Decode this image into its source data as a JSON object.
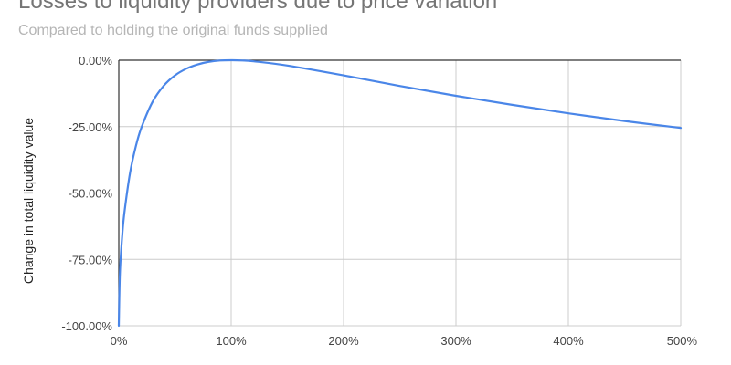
{
  "chart_data": {
    "type": "line",
    "title": "Losses to liquidity providers due to price variation",
    "subtitle": "Compared to holding the original funds supplied",
    "ylabel": "Change in total liquidity value",
    "xlabel": "",
    "xlim": [
      0,
      500
    ],
    "ylim": [
      -100,
      0
    ],
    "x_ticks": [
      0,
      100,
      200,
      300,
      400,
      500
    ],
    "x_tick_labels": [
      "0%",
      "100%",
      "200%",
      "300%",
      "400%",
      "500%"
    ],
    "y_ticks": [
      0,
      -25,
      -50,
      -75,
      -100
    ],
    "y_tick_labels": [
      "0.00%",
      "-25.00%",
      "-50.00%",
      "-75.00%",
      "-100.00%"
    ],
    "grid": true,
    "legend": "none",
    "series": [
      {
        "color": "#4a86e8",
        "x": [
          0,
          1,
          3,
          5,
          10,
          15,
          20,
          30,
          40,
          50,
          60,
          70,
          80,
          90,
          100,
          110,
          120,
          150,
          200,
          250,
          300,
          350,
          400,
          450,
          500
        ],
        "y": [
          -100,
          -80.2,
          -66.4,
          -57.4,
          -42.5,
          -32.7,
          -25.5,
          -15.7,
          -9.6,
          -5.7,
          -3.2,
          -1.6,
          -0.6,
          -0.1,
          0,
          -0.1,
          -0.4,
          -2.0,
          -5.7,
          -9.7,
          -13.4,
          -16.8,
          -20.0,
          -22.9,
          -25.5
        ]
      }
    ]
  }
}
